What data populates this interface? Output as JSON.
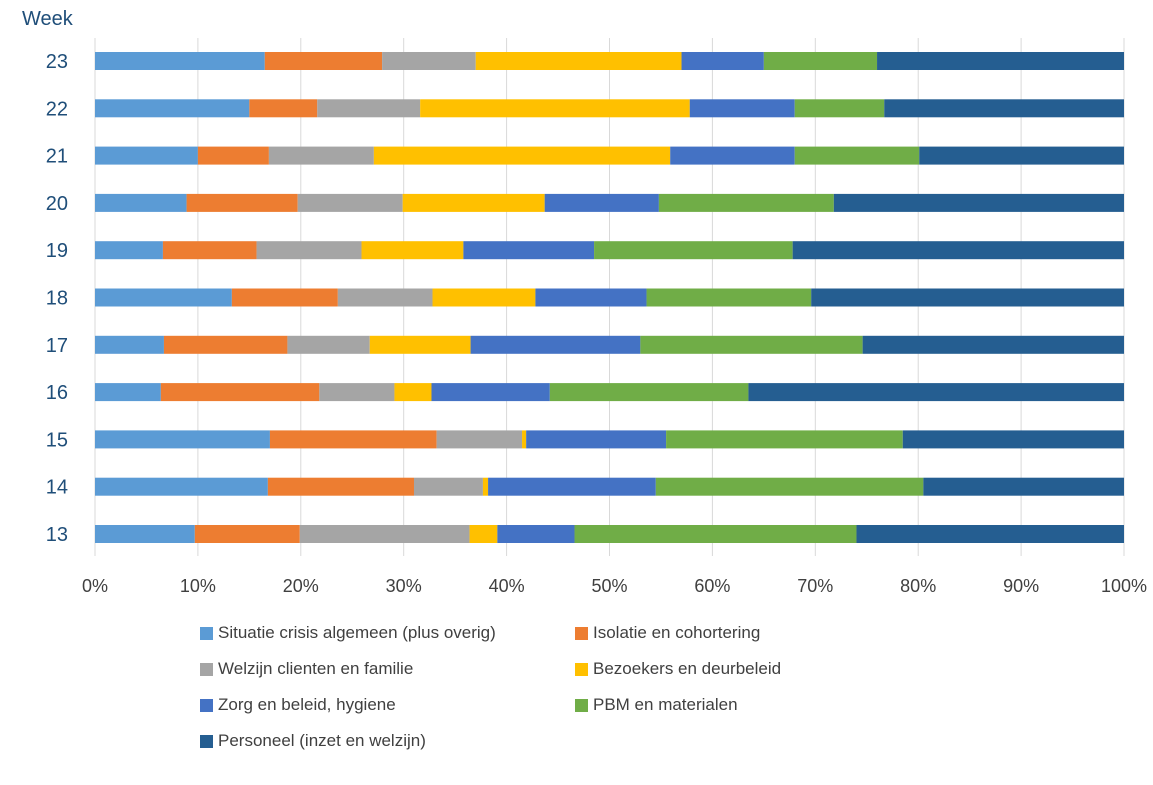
{
  "chart_data": {
    "type": "bar",
    "orientation": "horizontal",
    "stacked": "percent",
    "title": "",
    "ylabel": "Week",
    "xlabel": "",
    "xlim": [
      0,
      100
    ],
    "x_ticks": [
      "0%",
      "10%",
      "20%",
      "30%",
      "40%",
      "50%",
      "60%",
      "70%",
      "80%",
      "90%",
      "100%"
    ],
    "grid": "vertical",
    "legend_position": "bottom",
    "categories": [
      "13",
      "14",
      "15",
      "16",
      "17",
      "18",
      "19",
      "20",
      "21",
      "22",
      "23"
    ],
    "series": [
      {
        "name": "Situatie crisis algemeen (plus overig)",
        "color": "#5b9bd5",
        "values": [
          9.7,
          16.8,
          17.0,
          6.4,
          6.7,
          13.3,
          6.6,
          8.9,
          10.0,
          15.0,
          16.5
        ]
      },
      {
        "name": "Isolatie en cohortering",
        "color": "#ed7d31",
        "values": [
          10.2,
          14.2,
          16.2,
          15.4,
          12.0,
          10.3,
          9.1,
          10.8,
          6.9,
          6.6,
          11.4
        ]
      },
      {
        "name": "Welzijn clienten en familie",
        "color": "#a5a5a5",
        "values": [
          16.5,
          6.7,
          8.3,
          7.3,
          8.0,
          9.2,
          10.2,
          10.2,
          10.2,
          10.0,
          9.1
        ]
      },
      {
        "name": "Bezoekers en deurbeleid",
        "color": "#ffc000",
        "values": [
          2.7,
          0.5,
          0.4,
          3.6,
          9.8,
          10.0,
          9.9,
          13.8,
          28.8,
          26.2,
          20.0
        ]
      },
      {
        "name": "Zorg en beleid, hygiene",
        "color": "#4472c4",
        "values": [
          7.5,
          16.3,
          13.6,
          11.5,
          16.5,
          10.8,
          12.7,
          11.1,
          12.1,
          10.2,
          8.0
        ]
      },
      {
        "name": "PBM en materialen",
        "color": "#70ad47",
        "values": [
          27.4,
          26.0,
          23.0,
          19.3,
          21.6,
          16.0,
          19.3,
          17.0,
          12.1,
          8.7,
          11.0
        ]
      },
      {
        "name": "Personeel (inzet en welzijn)",
        "color": "#255e91",
        "values": [
          26.0,
          19.5,
          21.5,
          36.5,
          25.4,
          30.4,
          32.2,
          28.2,
          19.9,
          23.3,
          24.0
        ]
      }
    ]
  }
}
